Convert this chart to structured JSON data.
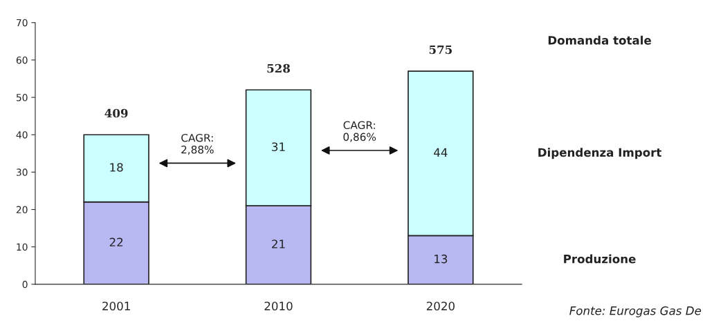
{
  "chart_data": {
    "type": "bar",
    "stacked": true,
    "categories": [
      "2001",
      "2010",
      "2020"
    ],
    "series": [
      {
        "name": "Produzione",
        "color": "#b8b8f2",
        "values": [
          22,
          21,
          13
        ]
      },
      {
        "name": "Dipendenza Import",
        "color": "#ccffff",
        "values": [
          18,
          31,
          44
        ]
      }
    ],
    "data_labels": true,
    "ylim": [
      0,
      70
    ],
    "yticks": [
      0,
      10,
      20,
      30,
      40,
      50,
      60,
      70
    ],
    "grid": false,
    "legend": "right",
    "annotations": [
      "Domanda totale",
      "CAGR:\n2,88%",
      "CAGR:\n0,86%",
      "Fonte: Eurogas Gas De",
      {
        "text": "409",
        "x": "2001",
        "y": 40
      },
      {
        "text": "528",
        "x": "2010",
        "y": 52
      },
      {
        "text": "575",
        "x": "2020",
        "y": 57
      }
    ]
  }
}
